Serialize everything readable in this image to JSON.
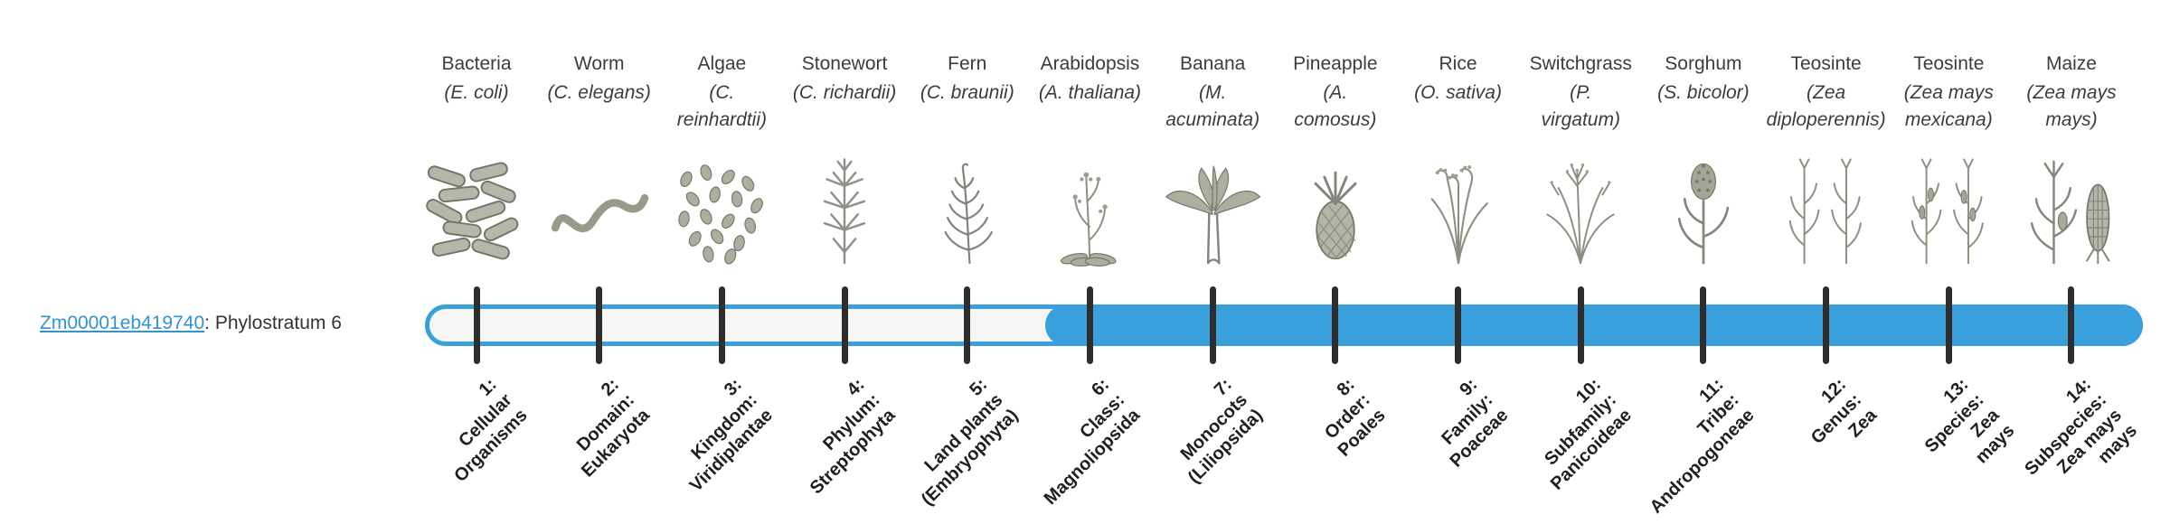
{
  "gene": {
    "id": "Zm00001eb419740",
    "suffix": ": Phylostratum 6",
    "phylostratum": 6
  },
  "colors": {
    "bar_fill": "#3aa0dc",
    "bar_track": "#f6f6f4",
    "tick": "#2e2e2e",
    "link": "#3193d1",
    "label_text": "#3c3c3c",
    "tick_label_text": "#1f1f1f"
  },
  "strata": [
    {
      "index": 1,
      "organism": "Bacteria",
      "scientific_lines": [
        "(E. coli)"
      ],
      "icon": "bacteria-icon",
      "tick_label_lines": [
        "1:",
        "Cellular",
        "Organisms"
      ]
    },
    {
      "index": 2,
      "organism": "Worm",
      "scientific_lines": [
        "(C. elegans)"
      ],
      "icon": "worm-icon",
      "tick_label_lines": [
        "2:",
        "Domain:",
        "Eukaryota"
      ]
    },
    {
      "index": 3,
      "organism": "Algae",
      "scientific_lines": [
        "(C.",
        "reinhardtii)"
      ],
      "icon": "algae-icon",
      "tick_label_lines": [
        "3:",
        "Kingdom:",
        "Viridiplantae"
      ]
    },
    {
      "index": 4,
      "organism": "Stonewort",
      "scientific_lines": [
        "(C. richardii)"
      ],
      "icon": "stonewort-icon",
      "tick_label_lines": [
        "4:",
        "Phylum:",
        "Streptophyta"
      ]
    },
    {
      "index": 5,
      "organism": "Fern",
      "scientific_lines": [
        "(C. braunii)"
      ],
      "icon": "fern-icon",
      "tick_label_lines": [
        "5:",
        "Land plants",
        "(Embryophyta)"
      ]
    },
    {
      "index": 6,
      "organism": "Arabidopsis",
      "scientific_lines": [
        "(A. thaliana)"
      ],
      "icon": "arabidopsis-icon",
      "tick_label_lines": [
        "6:",
        "Class:",
        "Magnoliopsida"
      ]
    },
    {
      "index": 7,
      "organism": "Banana",
      "scientific_lines": [
        "(M.",
        "acuminata)"
      ],
      "icon": "banana-icon",
      "tick_label_lines": [
        "7:",
        "Monocots",
        "(Liliopsida)"
      ]
    },
    {
      "index": 8,
      "organism": "Pineapple",
      "scientific_lines": [
        "(A.",
        "comosus)"
      ],
      "icon": "pineapple-icon",
      "tick_label_lines": [
        "8:",
        "Order:",
        "Poales"
      ]
    },
    {
      "index": 9,
      "organism": "Rice",
      "scientific_lines": [
        "(O. sativa)"
      ],
      "icon": "rice-icon",
      "tick_label_lines": [
        "9:",
        "Family:",
        "Poaceae"
      ]
    },
    {
      "index": 10,
      "organism": "Switchgrass",
      "scientific_lines": [
        "(P.",
        "virgatum)"
      ],
      "icon": "switchgrass-icon",
      "tick_label_lines": [
        "10:",
        "Subfamily:",
        "Panicoideae"
      ]
    },
    {
      "index": 11,
      "organism": "Sorghum",
      "scientific_lines": [
        "(S. bicolor)"
      ],
      "icon": "sorghum-icon",
      "tick_label_lines": [
        "11:",
        "Tribe:",
        "Andropogoneae"
      ]
    },
    {
      "index": 12,
      "organism": "Teosinte",
      "scientific_lines": [
        "(Zea",
        "diploperennis)"
      ],
      "icon": "teosinte-icon",
      "tick_label_lines": [
        "12:",
        "Genus:",
        "Zea"
      ]
    },
    {
      "index": 13,
      "organism": "Teosinte",
      "scientific_lines": [
        "(Zea mays",
        "mexicana)"
      ],
      "icon": "teosinte2-icon",
      "tick_label_lines": [
        "13:",
        "Species:",
        "Zea",
        "mays"
      ]
    },
    {
      "index": 14,
      "organism": "Maize",
      "scientific_lines": [
        "(Zea mays",
        "mays)"
      ],
      "icon": "maize-icon",
      "tick_label_lines": [
        "14:",
        "Subspecies:",
        "Zea mays",
        "mays"
      ]
    }
  ]
}
